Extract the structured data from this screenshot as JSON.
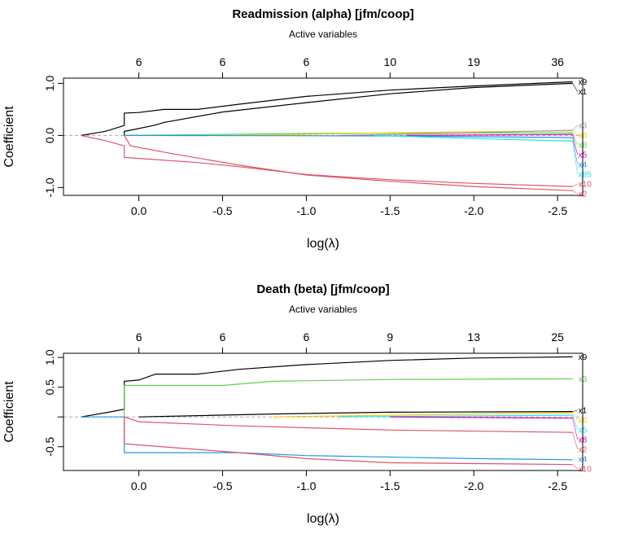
{
  "chart_data": [
    {
      "type": "line",
      "title": "Readmission (alpha)  [jfm/coop]",
      "top_axis_title": "Active variables",
      "xlabel": "log(λ)",
      "ylabel": "Coefficient",
      "xlim": [
        0.45,
        -2.65
      ],
      "ylim": [
        -1.15,
        1.1
      ],
      "x_ticks": [
        0.0,
        -0.5,
        -1.0,
        -1.5,
        -2.0,
        -2.5
      ],
      "x_tick_labels": [
        "0.0",
        "-0.5",
        "-1.0",
        "-1.5",
        "-2.0",
        "-2.5"
      ],
      "top_tick_labels": [
        "6",
        "6",
        "6",
        "10",
        "19",
        "36"
      ],
      "y_ticks": [
        1.0,
        0.0,
        -1.0
      ],
      "y_tick_labels": [
        "1.0",
        "0.0",
        "-1.0"
      ],
      "series": [
        {
          "name": "x9",
          "color": "#000000",
          "points": [
            [
              0.345,
              0
            ],
            [
              0.2,
              0.08
            ],
            [
              0.087,
              0.19
            ],
            [
              0.087,
              0.43
            ],
            [
              0,
              0.44
            ],
            [
              -0.15,
              0.5
            ],
            [
              -0.35,
              0.5
            ],
            [
              -0.6,
              0.6
            ],
            [
              -1.0,
              0.75
            ],
            [
              -1.5,
              0.87
            ],
            [
              -2.0,
              0.95
            ],
            [
              -2.59,
              1.03
            ]
          ]
        },
        {
          "name": "x1",
          "color": "#000000",
          "points": [
            [
              0.087,
              0
            ],
            [
              0.087,
              0.08
            ],
            [
              0.05,
              0.1
            ],
            [
              -0.1,
              0.2
            ],
            [
              -0.15,
              0.25
            ],
            [
              -0.5,
              0.45
            ],
            [
              -1.0,
              0.63
            ],
            [
              -1.5,
              0.8
            ],
            [
              -2.0,
              0.92
            ],
            [
              -2.59,
              1.0
            ]
          ]
        },
        {
          "name": "x10",
          "color": "#DF536B",
          "points": [
            [
              0.345,
              0
            ],
            [
              0.2,
              -0.1
            ],
            [
              0.087,
              -0.2
            ],
            [
              0.087,
              -0.42
            ],
            [
              0,
              -0.44
            ],
            [
              -0.35,
              -0.52
            ],
            [
              -0.6,
              -0.6
            ],
            [
              -1.0,
              -0.75
            ],
            [
              -1.5,
              -0.85
            ],
            [
              -2.0,
              -0.92
            ],
            [
              -2.59,
              -0.98
            ]
          ]
        },
        {
          "name": "x2",
          "color": "#DF536B",
          "points": [
            [
              0.087,
              0
            ],
            [
              0.05,
              -0.2
            ],
            [
              -0.2,
              -0.35
            ],
            [
              -0.6,
              -0.57
            ],
            [
              -1.0,
              -0.76
            ],
            [
              -1.5,
              -0.88
            ],
            [
              -2.0,
              -0.98
            ],
            [
              -2.59,
              -1.06
            ]
          ]
        },
        {
          "name": "x8",
          "color": "#61D04F",
          "points": [
            [
              0.087,
              0
            ],
            [
              -0.5,
              0.02
            ],
            [
              -1.0,
              0.04
            ],
            [
              -2.59,
              0.05
            ]
          ]
        },
        {
          "name": "x6",
          "color": "#F5C710",
          "points": [
            [
              -0.6,
              0
            ],
            [
              -1.5,
              0.05
            ],
            [
              -2.59,
              0.09
            ]
          ]
        },
        {
          "name": "x3",
          "color": "#9E9E9E",
          "points": [
            [
              -1.2,
              0
            ],
            [
              -2.0,
              0.05
            ],
            [
              -2.59,
              0.1
            ]
          ]
        },
        {
          "name": "x5",
          "color": "#CD0BBC",
          "points": [
            [
              -1.6,
              0
            ],
            [
              -2.59,
              0.02
            ]
          ]
        },
        {
          "name": "x4",
          "color": "#2297E6",
          "points": [
            [
              0.087,
              0
            ],
            [
              -1.5,
              -0.01
            ],
            [
              -2.59,
              -0.04
            ]
          ]
        },
        {
          "name": "x85",
          "color": "#28E2E5",
          "points": [
            [
              -1.4,
              0
            ],
            [
              -2.0,
              -0.06
            ],
            [
              -2.59,
              -0.11
            ]
          ]
        }
      ]
    },
    {
      "type": "line",
      "title": "Death (beta)  [jfm/coop]",
      "top_axis_title": "Active variables",
      "xlabel": "log(λ)",
      "ylabel": "Coefficient",
      "xlim": [
        0.45,
        -2.65
      ],
      "ylim": [
        -0.9,
        1.07
      ],
      "x_ticks": [
        0.0,
        -0.5,
        -1.0,
        -1.5,
        -2.0,
        -2.5
      ],
      "x_tick_labels": [
        "0.0",
        "-0.5",
        "-1.0",
        "-1.5",
        "-2.0",
        "-2.5"
      ],
      "top_tick_labels": [
        "6",
        "6",
        "6",
        "9",
        "13",
        "25"
      ],
      "y_ticks": [
        1.0,
        0.5,
        0.0,
        -0.5
      ],
      "y_tick_labels": [
        "1.0",
        "0.5",
        "",
        "-0.5"
      ],
      "series": [
        {
          "name": "x9",
          "color": "#000000",
          "points": [
            [
              0.345,
              0
            ],
            [
              0.2,
              0.07
            ],
            [
              0.087,
              0.13
            ],
            [
              0.087,
              0.6
            ],
            [
              0,
              0.62
            ],
            [
              -0.1,
              0.72
            ],
            [
              -0.35,
              0.72
            ],
            [
              -0.6,
              0.8
            ],
            [
              -1.0,
              0.88
            ],
            [
              -1.5,
              0.95
            ],
            [
              -2.0,
              0.99
            ],
            [
              -2.59,
              1.01
            ]
          ]
        },
        {
          "name": "x3",
          "color": "#61D04F",
          "points": [
            [
              0.087,
              0
            ],
            [
              0.087,
              0.53
            ],
            [
              -0.5,
              0.53
            ],
            [
              -0.8,
              0.6
            ],
            [
              -1.5,
              0.63
            ],
            [
              -2.59,
              0.64
            ]
          ]
        },
        {
          "name": "x1",
          "color": "#000000",
          "points": [
            [
              0.0,
              0
            ],
            [
              -0.8,
              0.05
            ],
            [
              -1.5,
              0.08
            ],
            [
              -2.59,
              0.09
            ]
          ]
        },
        {
          "name": "x6",
          "color": "#F5C710",
          "points": [
            [
              -0.8,
              0
            ],
            [
              -2.0,
              0.05
            ],
            [
              -2.59,
              0.07
            ]
          ]
        },
        {
          "name": "x5",
          "color": "#28E2E5",
          "points": [
            [
              -1.2,
              0
            ],
            [
              -2.59,
              0.03
            ]
          ]
        },
        {
          "name": "x8",
          "color": "#CD0BBC",
          "points": [
            [
              -1.5,
              0
            ],
            [
              -2.59,
              -0.02
            ]
          ]
        },
        {
          "name": "x2",
          "color": "#DF536B",
          "points": [
            [
              0.087,
              0
            ],
            [
              0,
              -0.08
            ],
            [
              -0.6,
              -0.15
            ],
            [
              -1.5,
              -0.22
            ],
            [
              -2.59,
              -0.26
            ]
          ]
        },
        {
          "name": "x4",
          "color": "#2297E6",
          "points": [
            [
              0.345,
              0
            ],
            [
              0.087,
              0
            ],
            [
              0.087,
              -0.6
            ],
            [
              -0.6,
              -0.6
            ],
            [
              -1.0,
              -0.65
            ],
            [
              -2.0,
              -0.7
            ],
            [
              -2.59,
              -0.72
            ]
          ]
        },
        {
          "name": "x10",
          "color": "#DF536B",
          "points": [
            [
              0.087,
              0
            ],
            [
              0.087,
              -0.45
            ],
            [
              0,
              -0.47
            ],
            [
              -0.6,
              -0.6
            ],
            [
              -1.0,
              -0.7
            ],
            [
              -1.5,
              -0.77
            ],
            [
              -2.59,
              -0.8
            ]
          ]
        }
      ]
    }
  ]
}
